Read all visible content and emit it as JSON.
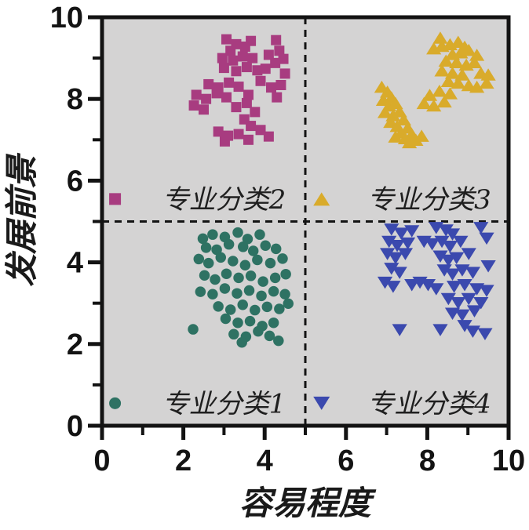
{
  "chart_data": {
    "type": "scatter",
    "title": "",
    "xlabel": "容易程度",
    "ylabel": "发展前景",
    "xlim": [
      0,
      10
    ],
    "ylim": [
      0,
      10
    ],
    "x_major_ticks": [
      0,
      2,
      4,
      6,
      8,
      10
    ],
    "x_minor_ticks": [
      1,
      3,
      5,
      7,
      9
    ],
    "y_major_ticks": [
      0,
      2,
      4,
      6,
      8,
      10
    ],
    "y_minor_ticks": [
      1,
      3,
      5,
      7,
      9
    ],
    "grid": false,
    "legend_position": "inside, one entry per quadrant",
    "plot_background": "#d4d3d3",
    "axis_color": "#131313",
    "reference_lines": [
      {
        "orientation": "vertical",
        "value": 5,
        "style": "dashed",
        "color": "#131313"
      },
      {
        "orientation": "horizontal",
        "value": 5,
        "style": "dashed",
        "color": "#131313"
      }
    ],
    "series": [
      {
        "name": "专业分类1",
        "marker": "circle",
        "color": "#2e7263",
        "legend_marker_xy": [
          0.32,
          0.55
        ],
        "legend_label_xy": [
          3.0,
          0.55
        ],
        "points": [
          [
            2.48,
            4.58
          ],
          [
            2.72,
            4.68
          ],
          [
            3.02,
            4.62
          ],
          [
            3.34,
            4.73
          ],
          [
            3.58,
            4.57
          ],
          [
            3.88,
            4.68
          ],
          [
            2.56,
            4.36
          ],
          [
            2.82,
            4.31
          ],
          [
            3.12,
            4.44
          ],
          [
            3.47,
            4.38
          ],
          [
            3.72,
            4.28
          ],
          [
            4.02,
            4.41
          ],
          [
            4.28,
            4.33
          ],
          [
            2.38,
            4.08
          ],
          [
            2.62,
            3.98
          ],
          [
            2.92,
            4.12
          ],
          [
            3.22,
            4.03
          ],
          [
            3.52,
            3.93
          ],
          [
            3.82,
            4.06
          ],
          [
            4.14,
            3.98
          ],
          [
            4.44,
            4.09
          ],
          [
            2.52,
            3.68
          ],
          [
            2.78,
            3.58
          ],
          [
            3.06,
            3.72
          ],
          [
            3.36,
            3.62
          ],
          [
            3.66,
            3.67
          ],
          [
            3.96,
            3.53
          ],
          [
            4.26,
            3.62
          ],
          [
            4.52,
            3.71
          ],
          [
            2.42,
            3.28
          ],
          [
            2.72,
            3.22
          ],
          [
            3.02,
            3.36
          ],
          [
            3.32,
            3.24
          ],
          [
            3.62,
            3.31
          ],
          [
            3.92,
            3.18
          ],
          [
            4.22,
            3.29
          ],
          [
            4.5,
            3.22
          ],
          [
            2.86,
            2.92
          ],
          [
            3.16,
            2.84
          ],
          [
            3.46,
            2.96
          ],
          [
            3.76,
            2.83
          ],
          [
            4.06,
            2.91
          ],
          [
            4.36,
            2.86
          ],
          [
            4.58,
            2.99
          ],
          [
            2.24,
            2.36
          ],
          [
            3.04,
            2.62
          ],
          [
            3.34,
            2.52
          ],
          [
            3.64,
            2.56
          ],
          [
            3.94,
            2.44
          ],
          [
            4.22,
            2.52
          ],
          [
            3.24,
            2.24
          ],
          [
            3.54,
            2.18
          ],
          [
            3.84,
            2.31
          ],
          [
            4.12,
            2.2
          ],
          [
            3.44,
            2.04
          ],
          [
            4.34,
            2.08
          ]
        ]
      },
      {
        "name": "专业分类2",
        "marker": "square",
        "color": "#a83c80",
        "legend_marker_xy": [
          0.32,
          5.55
        ],
        "legend_label_xy": [
          3.0,
          5.55
        ],
        "points": [
          [
            3.06,
            9.46
          ],
          [
            3.3,
            9.34
          ],
          [
            3.52,
            9.28
          ],
          [
            3.66,
            9.42
          ],
          [
            4.28,
            9.44
          ],
          [
            4.36,
            9.18
          ],
          [
            3.16,
            9.18
          ],
          [
            2.96,
            9.0
          ],
          [
            3.22,
            8.94
          ],
          [
            3.46,
            9.04
          ],
          [
            3.7,
            9.0
          ],
          [
            4.1,
            9.08
          ],
          [
            4.26,
            8.88
          ],
          [
            4.46,
            8.98
          ],
          [
            3.0,
            8.76
          ],
          [
            3.3,
            8.68
          ],
          [
            3.56,
            8.78
          ],
          [
            3.82,
            8.7
          ],
          [
            4.02,
            8.74
          ],
          [
            4.5,
            8.62
          ],
          [
            2.62,
            8.36
          ],
          [
            2.86,
            8.28
          ],
          [
            3.12,
            8.4
          ],
          [
            3.36,
            8.3
          ],
          [
            3.9,
            8.44
          ],
          [
            4.16,
            8.28
          ],
          [
            4.4,
            8.34
          ],
          [
            2.32,
            8.1
          ],
          [
            2.56,
            8.0
          ],
          [
            2.82,
            8.14
          ],
          [
            3.06,
            8.04
          ],
          [
            3.6,
            8.1
          ],
          [
            4.3,
            8.04
          ],
          [
            2.26,
            7.84
          ],
          [
            2.5,
            7.74
          ],
          [
            3.3,
            7.8
          ],
          [
            3.56,
            7.9
          ],
          [
            3.76,
            7.68
          ],
          [
            3.5,
            7.5
          ],
          [
            3.66,
            7.34
          ],
          [
            2.86,
            7.2
          ],
          [
            3.1,
            7.1
          ],
          [
            3.36,
            7.14
          ],
          [
            3.9,
            7.24
          ],
          [
            4.1,
            7.08
          ],
          [
            3.02,
            6.96
          ],
          [
            3.6,
            7.0
          ]
        ]
      },
      {
        "name": "专业分类3",
        "marker": "triangle-up",
        "color": "#d9ab2b",
        "legend_marker_xy": [
          5.4,
          5.55
        ],
        "legend_label_xy": [
          8.05,
          5.55
        ],
        "points": [
          [
            6.88,
            8.3
          ],
          [
            7.02,
            8.18
          ],
          [
            7.12,
            8.04
          ],
          [
            6.92,
            7.98
          ],
          [
            7.06,
            7.84
          ],
          [
            7.22,
            7.9
          ],
          [
            6.96,
            7.68
          ],
          [
            7.16,
            7.6
          ],
          [
            7.32,
            7.7
          ],
          [
            7.1,
            7.44
          ],
          [
            7.26,
            7.34
          ],
          [
            7.42,
            7.5
          ],
          [
            7.36,
            7.18
          ],
          [
            7.52,
            7.3
          ],
          [
            7.22,
            7.08
          ],
          [
            7.46,
            7.04
          ],
          [
            7.62,
            7.14
          ],
          [
            7.72,
            7.0
          ],
          [
            7.86,
            7.1
          ],
          [
            7.56,
            6.94
          ],
          [
            8.32,
            9.5
          ],
          [
            8.16,
            9.24
          ],
          [
            8.36,
            9.3
          ],
          [
            8.56,
            9.34
          ],
          [
            8.76,
            9.4
          ],
          [
            8.92,
            9.28
          ],
          [
            8.62,
            9.1
          ],
          [
            8.82,
            9.14
          ],
          [
            9.02,
            9.2
          ],
          [
            9.22,
            9.08
          ],
          [
            8.46,
            8.94
          ],
          [
            8.72,
            8.9
          ],
          [
            8.96,
            8.84
          ],
          [
            9.16,
            8.9
          ],
          [
            8.36,
            8.7
          ],
          [
            8.62,
            8.64
          ],
          [
            8.86,
            8.6
          ],
          [
            9.32,
            8.64
          ],
          [
            9.46,
            8.4
          ],
          [
            8.52,
            8.44
          ],
          [
            8.76,
            8.4
          ],
          [
            9.02,
            8.34
          ],
          [
            9.22,
            8.3
          ],
          [
            8.06,
            8.1
          ],
          [
            8.3,
            8.2
          ],
          [
            8.56,
            8.14
          ],
          [
            7.92,
            7.9
          ],
          [
            8.16,
            7.84
          ],
          [
            8.42,
            7.94
          ],
          [
            9.5,
            8.6
          ]
        ]
      },
      {
        "name": "专业分类4",
        "marker": "triangle-down",
        "color": "#3b49ae",
        "legend_marker_xy": [
          5.4,
          0.55
        ],
        "legend_label_xy": [
          8.05,
          0.55
        ],
        "points": [
          [
            7.12,
            4.8
          ],
          [
            7.36,
            4.7
          ],
          [
            7.62,
            4.76
          ],
          [
            8.22,
            4.84
          ],
          [
            8.46,
            4.78
          ],
          [
            8.62,
            4.68
          ],
          [
            9.32,
            4.84
          ],
          [
            9.46,
            4.58
          ],
          [
            7.06,
            4.5
          ],
          [
            7.26,
            4.4
          ],
          [
            7.52,
            4.46
          ],
          [
            7.92,
            4.5
          ],
          [
            8.12,
            4.44
          ],
          [
            8.36,
            4.5
          ],
          [
            8.56,
            4.38
          ],
          [
            8.82,
            4.5
          ],
          [
            7.02,
            4.2
          ],
          [
            7.22,
            4.1
          ],
          [
            7.46,
            4.2
          ],
          [
            8.32,
            4.14
          ],
          [
            8.52,
            4.04
          ],
          [
            8.72,
            4.1
          ],
          [
            9.02,
            4.2
          ],
          [
            7.12,
            3.84
          ],
          [
            7.32,
            3.74
          ],
          [
            8.42,
            3.8
          ],
          [
            8.62,
            3.7
          ],
          [
            8.86,
            3.8
          ],
          [
            9.12,
            3.74
          ],
          [
            9.5,
            3.9
          ],
          [
            6.96,
            3.5
          ],
          [
            7.16,
            3.4
          ],
          [
            7.62,
            3.44
          ],
          [
            7.82,
            3.5
          ],
          [
            8.02,
            3.44
          ],
          [
            8.22,
            3.34
          ],
          [
            8.66,
            3.4
          ],
          [
            8.92,
            3.44
          ],
          [
            9.22,
            3.34
          ],
          [
            9.46,
            3.3
          ],
          [
            8.52,
            3.1
          ],
          [
            8.76,
            3.0
          ],
          [
            9.02,
            3.1
          ],
          [
            9.32,
            3.0
          ],
          [
            8.62,
            2.74
          ],
          [
            8.86,
            2.7
          ],
          [
            9.16,
            2.8
          ],
          [
            7.32,
            2.34
          ],
          [
            8.32,
            2.34
          ],
          [
            8.92,
            2.44
          ],
          [
            9.12,
            2.3
          ],
          [
            9.42,
            2.24
          ]
        ]
      }
    ]
  }
}
